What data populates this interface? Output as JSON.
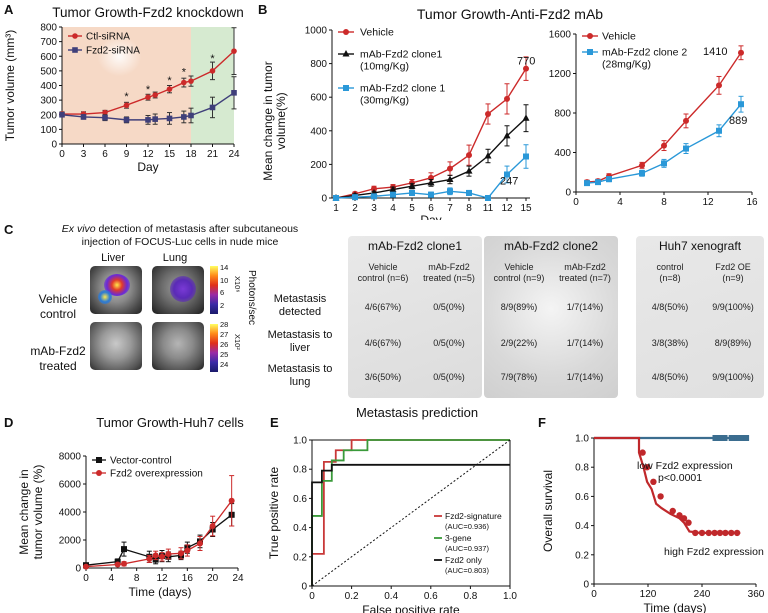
{
  "panels": {
    "A": {
      "letter": "A",
      "chart_data": {
        "type": "line",
        "title": "Tumor Growth-Fzd2 knockdown",
        "xlabel": "Day",
        "ylabel": "Tumor volume (mm³)",
        "xlim": [
          0,
          24
        ],
        "ylim": [
          0,
          800
        ],
        "xticks": [
          0,
          3,
          6,
          9,
          12,
          15,
          18,
          21,
          24
        ],
        "yticks": [
          0,
          100,
          200,
          300,
          400,
          500,
          600,
          700,
          800
        ],
        "shaded_regions": [
          {
            "from": 0,
            "to": 18,
            "color": "#f6d9c6"
          },
          {
            "from": 18,
            "to": 24,
            "color": "#d6ead0"
          }
        ],
        "series": [
          {
            "name": "Ctl-siRNA",
            "color": "#cc2a2a",
            "marker": "circle",
            "x": [
              0,
              3,
              6,
              9,
              12,
              13,
              15,
              17,
              18,
              21,
              24
            ],
            "y": [
              205,
              205,
              215,
              265,
              320,
              335,
              375,
              420,
              430,
              500,
              635
            ],
            "err": [
              15,
              15,
              15,
              20,
              20,
              20,
              25,
              30,
              35,
              60,
              160
            ]
          },
          {
            "name": "Fzd2-siRNA",
            "color": "#3f3f7a",
            "marker": "square",
            "x": [
              0,
              3,
              6,
              9,
              12,
              13,
              15,
              17,
              18,
              21,
              24
            ],
            "y": [
              200,
              185,
              180,
              165,
              165,
              170,
              175,
              185,
              195,
              250,
              350
            ],
            "err": [
              15,
              15,
              20,
              20,
              30,
              35,
              40,
              40,
              50,
              70,
              110
            ]
          }
        ],
        "annotations": [
          {
            "text": "*",
            "x": 9,
            "y": 300
          },
          {
            "text": "*",
            "x": 12,
            "y": 350
          },
          {
            "text": "*",
            "x": 15,
            "y": 410
          },
          {
            "text": "*",
            "x": 17,
            "y": 470
          },
          {
            "text": "*",
            "x": 21,
            "y": 560
          }
        ],
        "legend": [
          "Ctl-siRNA",
          "Fzd2-siRNA"
        ]
      }
    },
    "B": {
      "letter": "B",
      "title": "Tumor Growth-Anti-Fzd2 mAb",
      "ylabel": "Mean change in tumor volume(%)",
      "chart_data": [
        {
          "type": "line",
          "xlabel": "Day",
          "ylim": [
            0,
            1000
          ],
          "yticks": [
            0,
            200,
            400,
            600,
            800,
            1000
          ],
          "categories": [
            "1",
            "2",
            "3",
            "4",
            "5",
            "6",
            "7",
            "8",
            "11",
            "12",
            "15"
          ],
          "series": [
            {
              "name": "Vehicle",
              "color": "#cc2a2a",
              "marker": "circle",
              "values": [
                0,
                25,
                55,
                65,
                90,
                120,
                175,
                255,
                500,
                590,
                770
              ],
              "err": [
                5,
                10,
                15,
                15,
                20,
                30,
                40,
                60,
                60,
                90,
                70
              ]
            },
            {
              "name": "mAb-Fzd2 clone1 (10mg/Kg)",
              "color": "#111111",
              "marker": "triangle",
              "values": [
                0,
                15,
                30,
                50,
                70,
                90,
                110,
                160,
                250,
                370,
                475
              ],
              "err": [
                5,
                10,
                10,
                15,
                15,
                20,
                25,
                30,
                40,
                60,
                80
              ]
            },
            {
              "name": "mAb-Fzd2 clone 1 (30mg/Kg)",
              "color": "#2a98d8",
              "marker": "square",
              "values": [
                0,
                5,
                10,
                20,
                30,
                20,
                40,
                30,
                0,
                140,
                247
              ],
              "err": [
                5,
                5,
                10,
                10,
                15,
                15,
                20,
                15,
                10,
                50,
                70
              ]
            }
          ],
          "legend": [
            "Vehicle",
            "mAb-Fzd2 clone1",
            "(10mg/Kg)",
            "mAb-Fzd2 clone 1",
            "(30mg/Kg)"
          ],
          "data_labels": [
            "770",
            "247"
          ]
        },
        {
          "type": "line",
          "xlim": [
            0,
            16
          ],
          "ylim": [
            0,
            1600
          ],
          "xticks": [
            0,
            4,
            8,
            12,
            16
          ],
          "yticks": [
            0,
            400,
            800,
            1200,
            1600
          ],
          "series": [
            {
              "name": "Vehicle",
              "color": "#cc2a2a",
              "marker": "circle",
              "x": [
                1,
                2,
                3,
                6,
                8,
                10,
                13,
                15
              ],
              "y": [
                100,
                110,
                160,
                270,
                470,
                720,
                1080,
                1410
              ],
              "err": [
                20,
                20,
                25,
                30,
                50,
                70,
                90,
                70
              ]
            },
            {
              "name": "mAb-Fzd2 clone 2 (28mg/Kg)",
              "color": "#2a98d8",
              "marker": "square",
              "x": [
                1,
                2,
                3,
                6,
                8,
                10,
                13,
                15
              ],
              "y": [
                90,
                100,
                130,
                190,
                290,
                440,
                620,
                889
              ],
              "err": [
                20,
                20,
                25,
                30,
                40,
                50,
                60,
                80
              ]
            }
          ],
          "legend": [
            "Vehicle",
            "mAb-Fzd2 clone 2",
            "(28mg/Kg)"
          ],
          "data_labels": [
            "1410",
            "889"
          ]
        }
      ]
    },
    "C": {
      "letter": "C",
      "caption_italic": "Ex vivo",
      "caption_rest": " detection of metastasis after subcutaneous",
      "caption_line2": "injection of FOCUS-Luc cells in nude mice",
      "col_liver": "Liver",
      "col_lung": "Lung",
      "row_vehicle": [
        "Vehicle",
        "control"
      ],
      "row_treated": [
        "mAb-Fzd2",
        "treated"
      ],
      "scale_top": {
        "ticks": [
          "14",
          "10",
          "6",
          "2"
        ],
        "unit": "X10⁶"
      },
      "scale_bottom": {
        "ticks": [
          "28",
          "27",
          "26",
          "25",
          "24"
        ],
        "unit": "X10²"
      },
      "scale_label": "Photons/sec",
      "groups": [
        "mAb-Fzd2 clone1",
        "mAb-Fzd2 clone2",
        "Huh7 xenograft"
      ],
      "subheaders": [
        [
          "Vehicle",
          "control (n=6)"
        ],
        [
          "mAb-Fzd2",
          "treated (n=5)"
        ],
        [
          "Vehicle",
          "control (n=9)"
        ],
        [
          "mAb-Fzd2",
          "treated (n=7)"
        ],
        [
          "control",
          "(n=8)"
        ],
        [
          "Fzd2 OE",
          "(n=9)"
        ]
      ],
      "rows": [
        {
          "label": [
            "Metastasis",
            "detected"
          ],
          "values": [
            "4/6(67%)",
            "0/5(0%)",
            "8/9(89%)",
            "1/7(14%)",
            "4/8(50%)",
            "9/9(100%)"
          ]
        },
        {
          "label": [
            "Metastasis to",
            "liver"
          ],
          "values": [
            "4/6(67%)",
            "0/5(0%)",
            "2/9(22%)",
            "1/7(14%)",
            "3/8(38%)",
            "8/9(89%)"
          ]
        },
        {
          "label": [
            "Metastasis to",
            "lung"
          ],
          "values": [
            "3/6(50%)",
            "0/5(0%)",
            "7/9(78%)",
            "1/7(14%)",
            "4/8(50%)",
            "9/9(100%)"
          ]
        }
      ]
    },
    "D": {
      "letter": "D",
      "chart_data": {
        "type": "line",
        "title": "Tumor Growth-Huh7 cells",
        "xlabel": "Time (days)",
        "ylabel": "Mean change in tumor volume (%)",
        "xlim": [
          0,
          24
        ],
        "ylim": [
          0,
          8000
        ],
        "xticks": [
          0,
          4,
          8,
          12,
          16,
          20,
          24
        ],
        "yticks": [
          0,
          2000,
          4000,
          6000,
          8000
        ],
        "series": [
          {
            "name": "Vector-control",
            "color": "#111111",
            "marker": "square",
            "x": [
              0,
              5,
              6,
              10,
              11,
              12,
              13,
              15,
              16,
              18,
              20,
              23
            ],
            "y": [
              200,
              450,
              1350,
              800,
              600,
              850,
              800,
              900,
              1450,
              1900,
              2750,
              3800
            ],
            "err": [
              100,
              200,
              500,
              400,
              300,
              400,
              350,
              300,
              400,
              450,
              500,
              800
            ]
          },
          {
            "name": "Fzd2 overexpression",
            "color": "#cc2a2a",
            "marker": "circle",
            "x": [
              0,
              5,
              6,
              10,
              11,
              12,
              13,
              15,
              16,
              18,
              20,
              23
            ],
            "y": [
              100,
              250,
              300,
              650,
              900,
              800,
              1000,
              1050,
              1250,
              1750,
              3000,
              4800
            ],
            "err": [
              50,
              100,
              150,
              250,
              300,
              300,
              350,
              400,
              400,
              500,
              700,
              1800
            ]
          }
        ],
        "legend": [
          "Vector-control",
          "Fzd2 overexpression"
        ]
      }
    },
    "E": {
      "letter": "E",
      "chart_data": {
        "type": "line",
        "title": "Metastasis prediction",
        "xlabel": "False positive rate",
        "ylabel": "True positive rate",
        "xlim": [
          0,
          1.0
        ],
        "ylim": [
          0,
          1.0
        ],
        "xticks": [
          0,
          0.2,
          0.4,
          0.6,
          0.8,
          1.0
        ],
        "yticks": [
          0,
          0.2,
          0.4,
          0.6,
          0.8,
          1.0
        ],
        "series": [
          {
            "name": "Fzd2-signature",
            "auc": "(AUC=0.936)",
            "color": "#c83838",
            "x": [
              0,
              0,
              0.06,
              0.06,
              0.12,
              0.12,
              0.2,
              0.2,
              1.0
            ],
            "y": [
              0,
              0.22,
              0.22,
              0.85,
              0.85,
              0.93,
              0.93,
              1.0,
              1.0
            ]
          },
          {
            "name": "3-gene",
            "auc": "(AUC=0.937)",
            "color": "#3a9a3a",
            "x": [
              0,
              0,
              0.05,
              0.05,
              0.1,
              0.1,
              0.16,
              0.16,
              0.28,
              0.28,
              1.0
            ],
            "y": [
              0,
              0.48,
              0.48,
              0.72,
              0.72,
              0.86,
              0.86,
              0.93,
              0.93,
              1.0,
              1.0
            ]
          },
          {
            "name": "Fzd2 only",
            "auc": "(AUC=0.803)",
            "color": "#111111",
            "x": [
              0,
              0,
              0.05,
              0.05,
              0.1,
              0.1,
              1.0
            ],
            "y": [
              0,
              0.71,
              0.71,
              0.79,
              0.79,
              0.83,
              0.83
            ]
          },
          {
            "name": "chance",
            "color": "#111111",
            "dashed": true,
            "x": [
              0,
              1.0
            ],
            "y": [
              0,
              1.0
            ]
          }
        ],
        "legend": [
          "Fzd2-signature",
          "(AUC=0.936)",
          "3-gene",
          "(AUC=0.937)",
          "Fzd2 only",
          "(AUC=0.803)"
        ]
      }
    },
    "F": {
      "letter": "F",
      "chart_data": {
        "type": "line",
        "xlabel": "Time (days)",
        "ylabel": "Overall survival",
        "xlim": [
          0,
          360
        ],
        "ylim": [
          0,
          1.0
        ],
        "xticks": [
          0,
          120,
          240,
          360
        ],
        "yticks": [
          0,
          0.2,
          0.4,
          0.6,
          0.8,
          1.0
        ],
        "series": [
          {
            "name": "low Fzd2 expression",
            "color": "#3b6d8f",
            "steps_x": [
              0,
              340
            ],
            "steps_y": [
              1.0,
              1.0
            ],
            "censor_x": [
              270,
              282,
              290,
              306,
              318,
              324,
              330,
              338
            ]
          },
          {
            "name": "high Fzd2 expression",
            "color": "#c0282b",
            "steps_x": [
              0,
              100,
              100,
              110,
              118,
              128,
              138,
              150,
              170,
              190,
              200,
              212,
              235,
              325
            ],
            "steps_y": [
              1.0,
              1.0,
              0.9,
              0.8,
              0.7,
              0.65,
              0.55,
              0.52,
              0.48,
              0.45,
              0.42,
              0.36,
              0.35,
              0.35
            ],
            "censor_x": [
              225,
              240,
              255,
              268,
              280,
              292,
              305,
              318
            ]
          }
        ],
        "annotations": [
          "low Fzd2 expression",
          "p<0.0001",
          "high Fzd2 expression"
        ]
      }
    }
  }
}
